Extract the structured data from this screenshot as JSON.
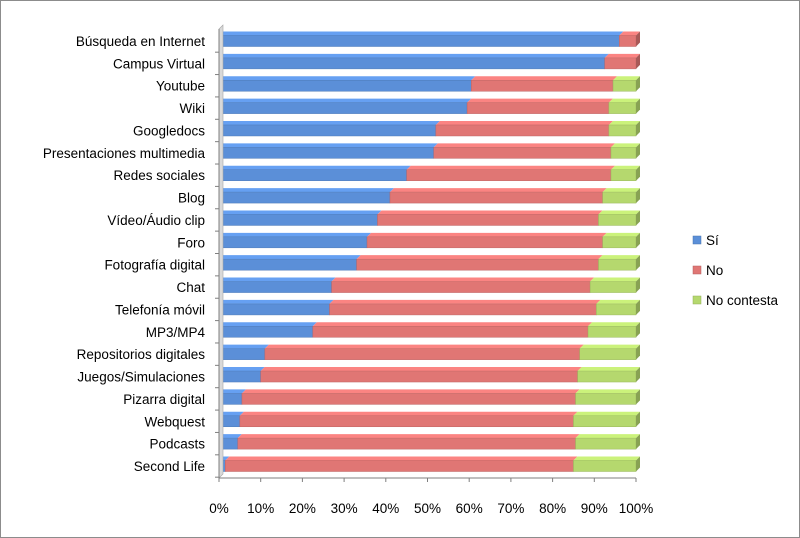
{
  "chart_data": {
    "type": "bar",
    "orientation": "horizontal",
    "stacked": "percent",
    "categories": [
      "Búsqueda en Internet",
      "Campus Virtual",
      "Youtube",
      "Wiki",
      "Googledocs",
      "Presentaciones multimedia",
      "Redes sociales",
      "Blog",
      "Vídeo/Áudio clip",
      "Foro",
      "Fotografía digital",
      "Chat",
      "Telefonía móvil",
      "MP3/MP4",
      "Repositorios digitales",
      "Juegos/Simulaciones",
      "Pizarra digital",
      "Webquest",
      "Podcasts",
      "Second Life"
    ],
    "series": [
      {
        "name": "Sí",
        "color": "#5b8fd8",
        "values": [
          96,
          92.5,
          60.5,
          59.5,
          52,
          51.5,
          45,
          41,
          38,
          35.5,
          33,
          27,
          26.5,
          22.5,
          11,
          10,
          5.5,
          5,
          4.5,
          1.5
        ]
      },
      {
        "name": "No",
        "color": "#e07674",
        "values": [
          4,
          7.5,
          34,
          34,
          41.5,
          42.5,
          49,
          51,
          53,
          56.5,
          58,
          62,
          64,
          66,
          75.5,
          76,
          80,
          80,
          81,
          83.5
        ]
      },
      {
        "name": "No contesta",
        "color": "#b5d86e",
        "values": [
          0,
          0,
          5.5,
          6.5,
          6.5,
          6,
          6,
          8,
          9,
          8,
          9,
          11,
          9.5,
          11.5,
          13.5,
          14,
          14.5,
          15,
          14.5,
          15
        ]
      }
    ],
    "xaxis": {
      "ticks": [
        "0%",
        "10%",
        "20%",
        "30%",
        "40%",
        "50%",
        "60%",
        "70%",
        "80%",
        "90%",
        "100%"
      ],
      "range": [
        0,
        100
      ]
    },
    "grid": false,
    "legend": "right"
  }
}
